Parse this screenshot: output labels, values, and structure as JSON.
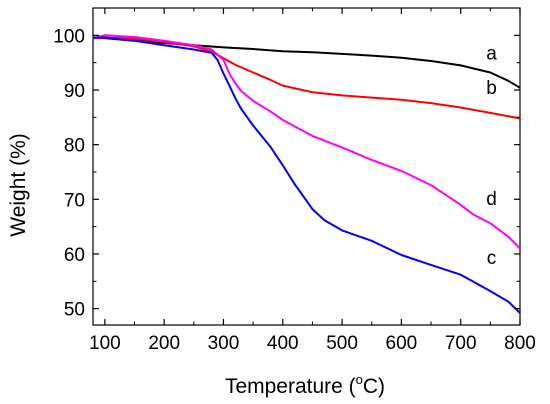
{
  "chart_data": {
    "type": "line",
    "xlabel": "Temperature (",
    "xlabel_degree": "o",
    "xlabel_unit": "C)",
    "ylabel": "Weight (%)",
    "xlim": [
      80,
      800
    ],
    "ylim": [
      47,
      105
    ],
    "grid": false,
    "x_ticks": [
      100,
      200,
      300,
      400,
      500,
      600,
      700,
      800
    ],
    "y_ticks": [
      50,
      60,
      70,
      80,
      90,
      100
    ],
    "series": [
      {
        "name": "a",
        "color": "#000000",
        "x": [
          80,
          100,
          150,
          200,
          250,
          300,
          350,
          400,
          450,
          500,
          550,
          600,
          650,
          700,
          750,
          780,
          800
        ],
        "y": [
          99.5,
          99.5,
          99.0,
          98.6,
          98.2,
          97.8,
          97.5,
          97.1,
          96.9,
          96.6,
          96.3,
          95.9,
          95.3,
          94.5,
          93.2,
          91.7,
          90.4
        ]
      },
      {
        "name": "b",
        "color": "#ff0000",
        "x": [
          80,
          100,
          150,
          200,
          250,
          280,
          300,
          320,
          350,
          380,
          400,
          450,
          500,
          550,
          600,
          650,
          700,
          750,
          800
        ],
        "y": [
          99.5,
          99.6,
          99.4,
          98.8,
          98.0,
          97.0,
          95.8,
          94.6,
          93.2,
          91.8,
          90.8,
          89.6,
          89.0,
          88.6,
          88.2,
          87.6,
          86.8,
          85.8,
          84.8
        ]
      },
      {
        "name": "d",
        "color": "#ff00ff",
        "x": [
          80,
          100,
          150,
          200,
          250,
          280,
          300,
          310,
          320,
          330,
          350,
          380,
          400,
          450,
          500,
          550,
          600,
          650,
          700,
          720,
          750,
          780,
          800
        ],
        "y": [
          99.5,
          100.0,
          99.7,
          99.0,
          98.2,
          97.4,
          95.5,
          93.0,
          91.2,
          89.8,
          88.0,
          86.0,
          84.5,
          81.6,
          79.5,
          77.2,
          75.2,
          72.6,
          69.0,
          67.3,
          65.6,
          63.2,
          61.0
        ]
      },
      {
        "name": "c",
        "color": "#0000ff",
        "x": [
          80,
          100,
          150,
          200,
          250,
          280,
          290,
          300,
          310,
          320,
          330,
          350,
          380,
          400,
          420,
          450,
          470,
          500,
          550,
          600,
          650,
          700,
          720,
          750,
          780,
          800
        ],
        "y": [
          99.6,
          99.6,
          99.0,
          98.2,
          97.4,
          96.8,
          95.5,
          93.0,
          90.8,
          88.5,
          86.5,
          83.5,
          79.5,
          76.2,
          72.8,
          68.2,
          66.2,
          64.3,
          62.4,
          59.8,
          58.0,
          56.2,
          55.0,
          53.2,
          51.3,
          49.2
        ]
      }
    ],
    "annotations": [
      {
        "text": "a",
        "x": 752,
        "y": 95.6
      },
      {
        "text": "b",
        "x": 752,
        "y": 89.3
      },
      {
        "text": "d",
        "x": 752,
        "y": 69.0
      },
      {
        "text": "c",
        "x": 752,
        "y": 58.2
      }
    ]
  }
}
